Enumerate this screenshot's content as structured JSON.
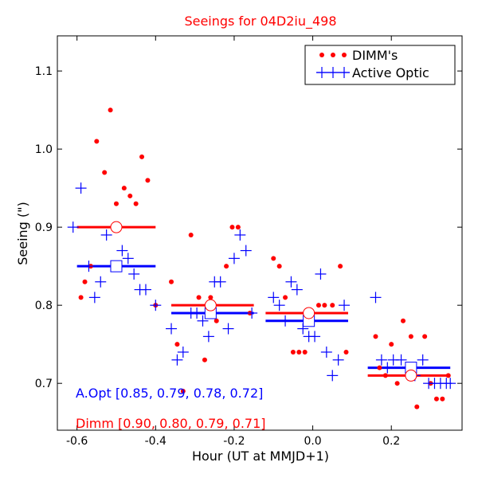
{
  "chart_data": {
    "type": "scatter",
    "title": "Seeings for 04D2iu_498",
    "xlabel": "Hour (UT at MMJD+1)",
    "ylabel": "Seeing (\")",
    "xlim": [
      -0.65,
      0.38
    ],
    "ylim": [
      0.64,
      1.145
    ],
    "xticks": [
      -0.6,
      -0.4,
      -0.2,
      0.0,
      0.2
    ],
    "xtick_labels": [
      "-0.6",
      "-0.4",
      "-0.2",
      "0.0",
      "0.2"
    ],
    "yticks": [
      0.7,
      0.8,
      0.9,
      1.0,
      1.1
    ],
    "ytick_labels": [
      "0.7",
      "0.8",
      "0.9",
      "1.0",
      "1.1"
    ],
    "colors": {
      "dimm": "#ff0000",
      "aopt": "#0000ff",
      "title": "#ff0000"
    },
    "legend": {
      "position": "top-right",
      "entries": [
        {
          "label": "DIMM's",
          "marker": "dot"
        },
        {
          "label": "Active Optic",
          "marker": "plus"
        }
      ]
    },
    "series": [
      {
        "name": "DIMM's",
        "marker": "dot",
        "points": [
          [
            -0.59,
            0.81
          ],
          [
            -0.58,
            0.83
          ],
          [
            -0.565,
            0.85
          ],
          [
            -0.55,
            1.01
          ],
          [
            -0.53,
            0.97
          ],
          [
            -0.515,
            1.05
          ],
          [
            -0.5,
            0.93
          ],
          [
            -0.48,
            0.95
          ],
          [
            -0.465,
            0.94
          ],
          [
            -0.45,
            0.93
          ],
          [
            -0.435,
            0.99
          ],
          [
            -0.42,
            0.96
          ],
          [
            -0.4,
            0.8
          ],
          [
            -0.36,
            0.83
          ],
          [
            -0.345,
            0.75
          ],
          [
            -0.33,
            0.69
          ],
          [
            -0.31,
            0.89
          ],
          [
            -0.29,
            0.81
          ],
          [
            -0.275,
            0.73
          ],
          [
            -0.26,
            0.81
          ],
          [
            -0.245,
            0.78
          ],
          [
            -0.22,
            0.85
          ],
          [
            -0.205,
            0.9
          ],
          [
            -0.19,
            0.9
          ],
          [
            -0.16,
            0.79
          ],
          [
            -0.1,
            0.86
          ],
          [
            -0.085,
            0.85
          ],
          [
            -0.07,
            0.81
          ],
          [
            -0.05,
            0.74
          ],
          [
            -0.035,
            0.74
          ],
          [
            -0.02,
            0.74
          ],
          [
            0.0,
            0.79
          ],
          [
            0.015,
            0.8
          ],
          [
            0.03,
            0.8
          ],
          [
            0.05,
            0.8
          ],
          [
            0.07,
            0.85
          ],
          [
            0.085,
            0.74
          ],
          [
            0.16,
            0.76
          ],
          [
            0.17,
            0.72
          ],
          [
            0.185,
            0.71
          ],
          [
            0.2,
            0.75
          ],
          [
            0.215,
            0.7
          ],
          [
            0.23,
            0.78
          ],
          [
            0.25,
            0.76
          ],
          [
            0.265,
            0.67
          ],
          [
            0.285,
            0.76
          ],
          [
            0.3,
            0.7
          ],
          [
            0.315,
            0.68
          ],
          [
            0.33,
            0.68
          ],
          [
            0.345,
            0.71
          ]
        ]
      },
      {
        "name": "Active Optic",
        "marker": "plus",
        "points": [
          [
            -0.61,
            0.9
          ],
          [
            -0.59,
            0.95
          ],
          [
            -0.57,
            0.85
          ],
          [
            -0.555,
            0.81
          ],
          [
            -0.54,
            0.83
          ],
          [
            -0.525,
            0.89
          ],
          [
            -0.5,
            0.85
          ],
          [
            -0.485,
            0.87
          ],
          [
            -0.47,
            0.86
          ],
          [
            -0.455,
            0.84
          ],
          [
            -0.44,
            0.82
          ],
          [
            -0.425,
            0.82
          ],
          [
            -0.4,
            0.8
          ],
          [
            -0.36,
            0.77
          ],
          [
            -0.345,
            0.73
          ],
          [
            -0.33,
            0.74
          ],
          [
            -0.31,
            0.79
          ],
          [
            -0.295,
            0.79
          ],
          [
            -0.28,
            0.78
          ],
          [
            -0.265,
            0.76
          ],
          [
            -0.25,
            0.83
          ],
          [
            -0.235,
            0.83
          ],
          [
            -0.215,
            0.77
          ],
          [
            -0.2,
            0.86
          ],
          [
            -0.185,
            0.89
          ],
          [
            -0.17,
            0.87
          ],
          [
            -0.155,
            0.79
          ],
          [
            -0.1,
            0.81
          ],
          [
            -0.085,
            0.8
          ],
          [
            -0.07,
            0.78
          ],
          [
            -0.055,
            0.83
          ],
          [
            -0.04,
            0.82
          ],
          [
            -0.025,
            0.77
          ],
          [
            -0.01,
            0.76
          ],
          [
            0.005,
            0.76
          ],
          [
            0.02,
            0.84
          ],
          [
            0.035,
            0.74
          ],
          [
            0.05,
            0.71
          ],
          [
            0.065,
            0.73
          ],
          [
            0.08,
            0.8
          ],
          [
            0.16,
            0.81
          ],
          [
            0.175,
            0.73
          ],
          [
            0.19,
            0.72
          ],
          [
            0.205,
            0.73
          ],
          [
            0.225,
            0.73
          ],
          [
            0.24,
            0.72
          ],
          [
            0.26,
            0.71
          ],
          [
            0.28,
            0.73
          ],
          [
            0.295,
            0.7
          ],
          [
            0.31,
            0.7
          ],
          [
            0.325,
            0.7
          ],
          [
            0.34,
            0.7
          ],
          [
            0.35,
            0.7
          ]
        ]
      }
    ],
    "bin_means": {
      "dimm": [
        {
          "x": -0.5,
          "y": 0.9,
          "x_range": [
            -0.6,
            -0.4
          ]
        },
        {
          "x": -0.26,
          "y": 0.8,
          "x_range": [
            -0.36,
            -0.15
          ]
        },
        {
          "x": -0.01,
          "y": 0.79,
          "x_range": [
            -0.12,
            0.09
          ]
        },
        {
          "x": 0.25,
          "y": 0.71,
          "x_range": [
            0.14,
            0.35
          ]
        }
      ],
      "aopt": [
        {
          "x": -0.5,
          "y": 0.85,
          "x_range": [
            -0.6,
            -0.4
          ]
        },
        {
          "x": -0.26,
          "y": 0.79,
          "x_range": [
            -0.36,
            -0.15
          ]
        },
        {
          "x": -0.01,
          "y": 0.78,
          "x_range": [
            -0.12,
            0.09
          ]
        },
        {
          "x": 0.25,
          "y": 0.72,
          "x_range": [
            0.14,
            0.35
          ]
        }
      ]
    },
    "annotations": {
      "aopt": "A.Opt [0.85, 0.79, 0.78, 0.72]",
      "dimm": "Dimm [0.90, 0.80, 0.79, 0.71]"
    }
  }
}
